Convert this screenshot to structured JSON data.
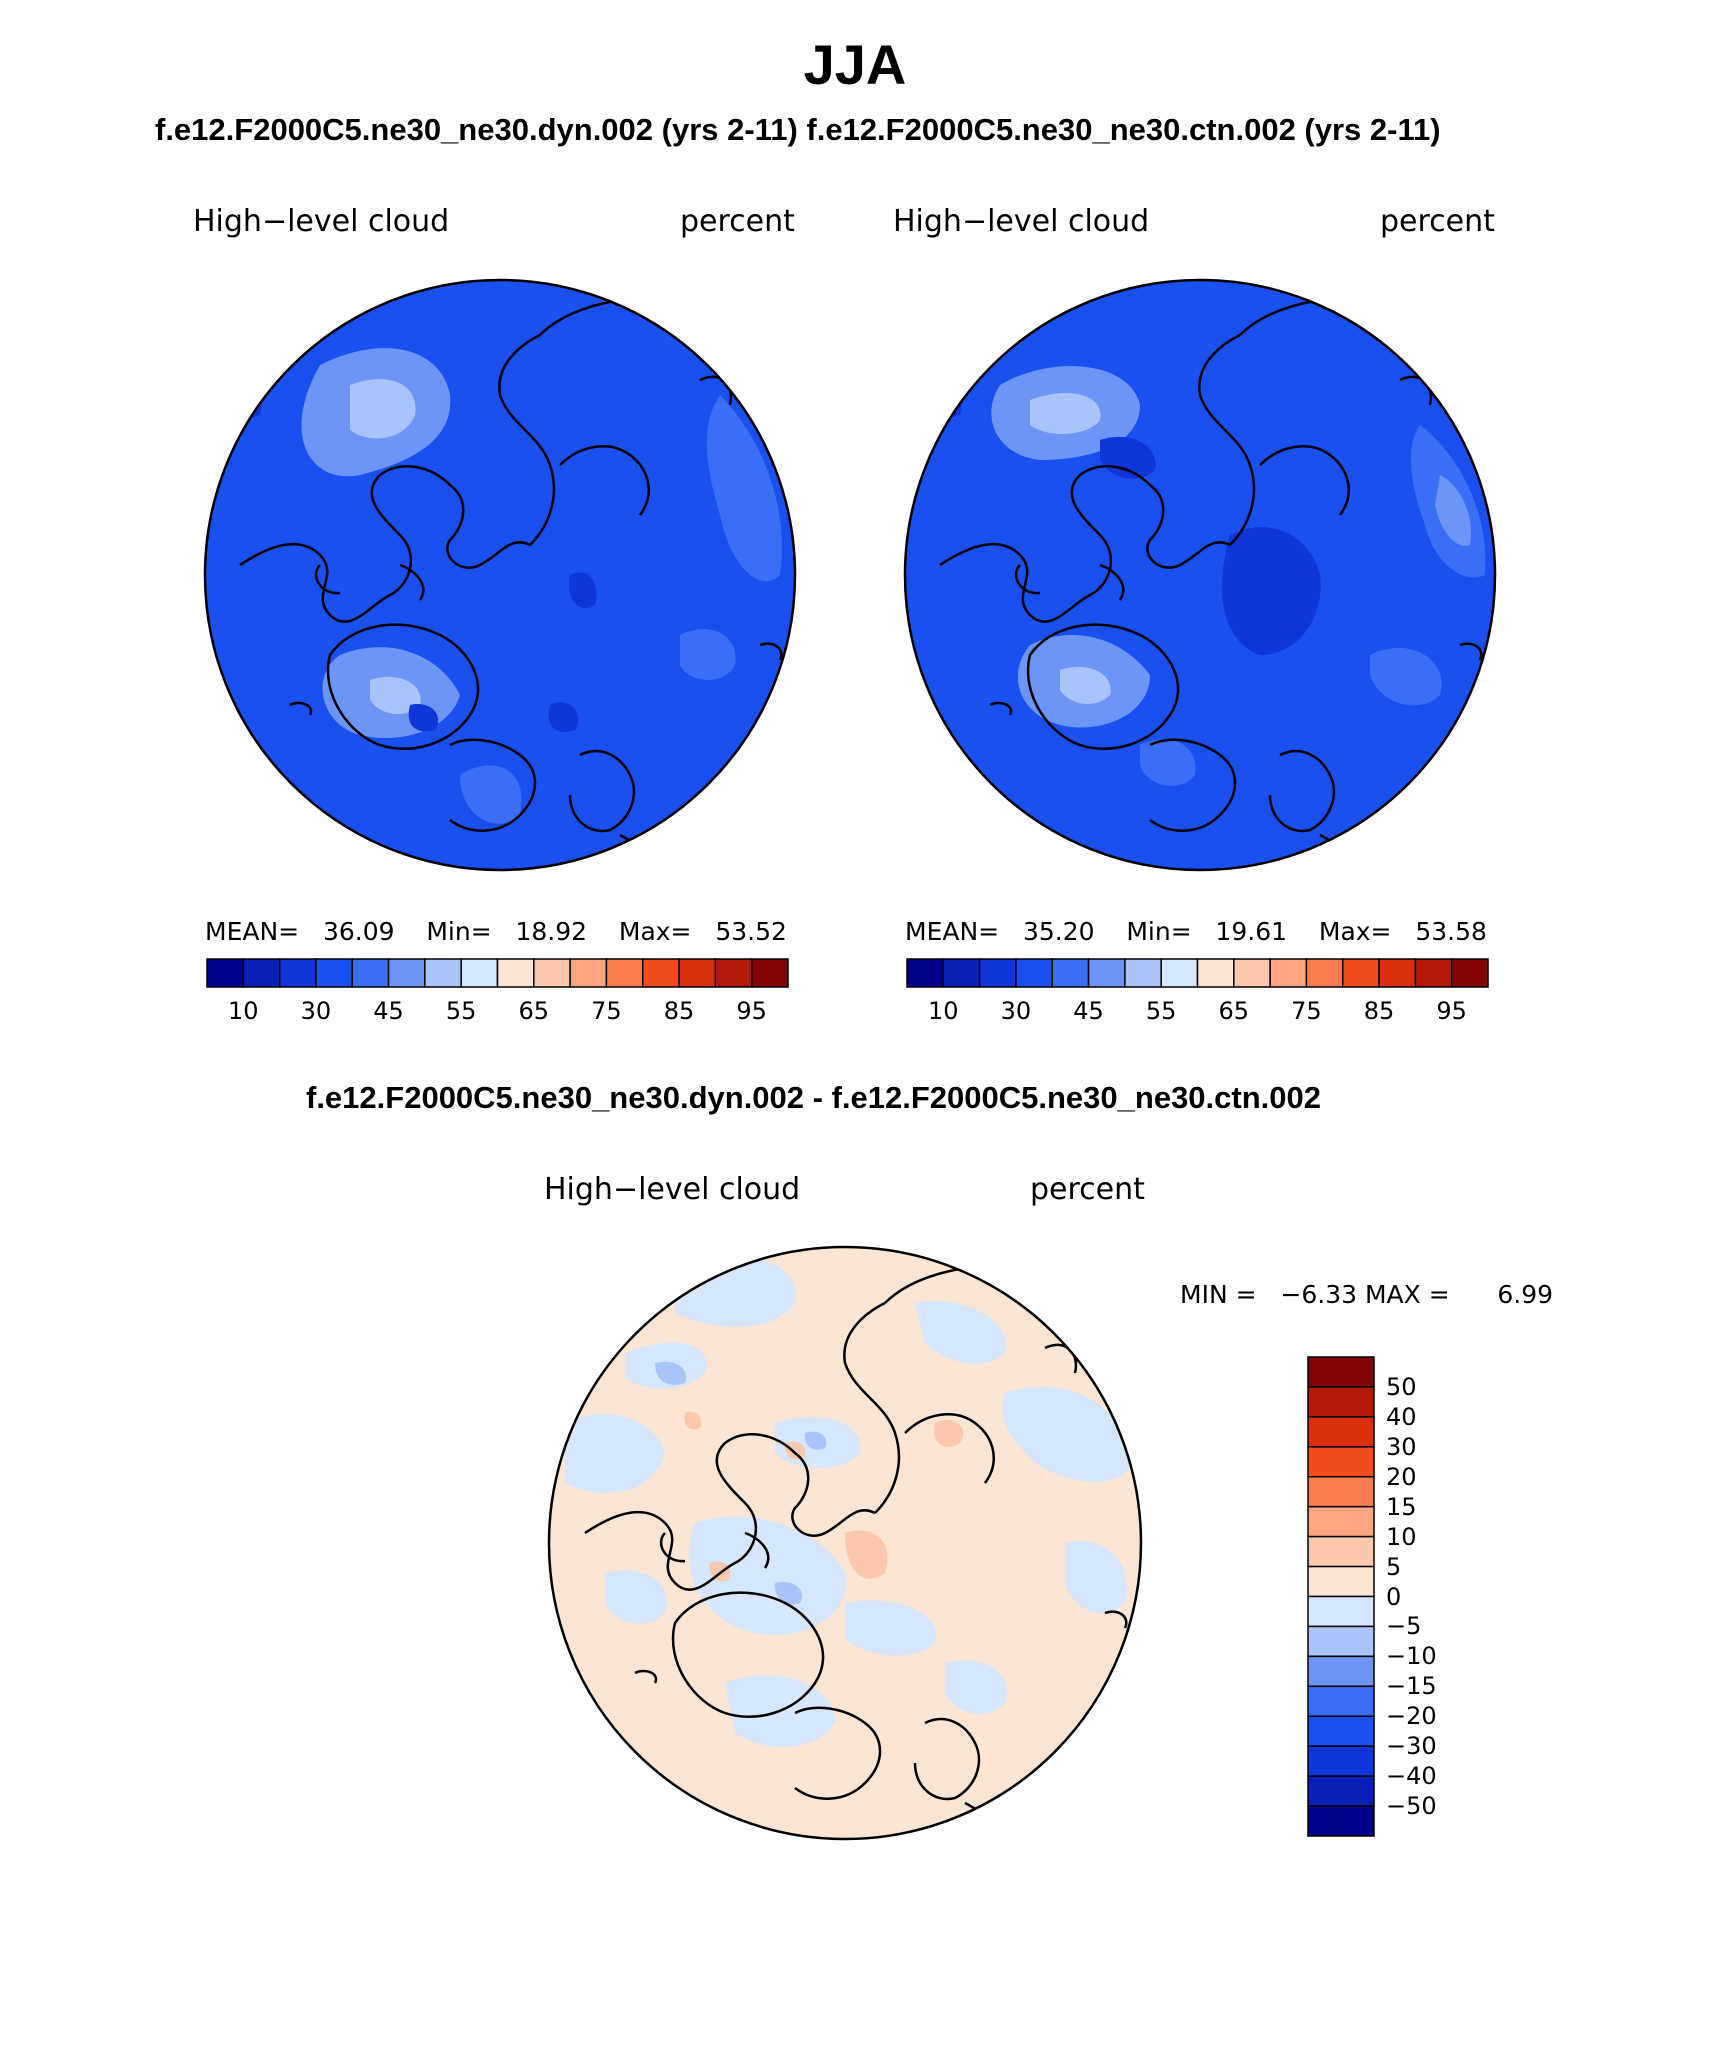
{
  "title": "JJA",
  "top_panel_title": "f.e12.F2000C5.ne30_ne30.dyn.002 (yrs 2-11)  f.e12.F2000C5.ne30_ne30.ctn.002 (yrs 2-11)",
  "diff_panel_title": "f.e12.F2000C5.ne30_ne30.dyn.002 - f.e12.F2000C5.ne30_ne30.ctn.002",
  "variable_label": "High−level cloud",
  "units_label": "percent",
  "panels": [
    {
      "id": "dyn",
      "stats": {
        "mean_label": "MEAN=",
        "mean": "36.09",
        "min_label": "Min=",
        "min": "18.92",
        "max_label": "Max=",
        "max": "53.52"
      }
    },
    {
      "id": "ctn",
      "stats": {
        "mean_label": "MEAN=",
        "mean": "35.20",
        "min_label": "Min=",
        "min": "19.61",
        "max_label": "Max=",
        "max": "53.58"
      }
    }
  ],
  "diff_stats": {
    "min_label": "MIN =",
    "min": "−6.33",
    "max_label": "MAX =",
    "max": "6.99"
  },
  "colorbar_main": {
    "colors": [
      "#00008b",
      "#0a21b8",
      "#1035d8",
      "#1a4ff0",
      "#3a6ef5",
      "#6d95f7",
      "#a8c4fb",
      "#d6e6fd",
      "#fde5d4",
      "#fcc8ad",
      "#fba582",
      "#fa7d4e",
      "#f24d1d",
      "#d9300d",
      "#b31a08",
      "#820404"
    ],
    "tick_labels": [
      "10",
      "30",
      "45",
      "55",
      "65",
      "75",
      "85",
      "95"
    ]
  },
  "colorbar_diff": {
    "colors": [
      "#820404",
      "#b31a08",
      "#d9300d",
      "#f24d1d",
      "#fa7d4e",
      "#fba582",
      "#fcc8ad",
      "#fde5d4",
      "#d6e6fd",
      "#a8c4fb",
      "#6d95f7",
      "#3a6ef5",
      "#1a4ff0",
      "#1035d8",
      "#0a21b8",
      "#00008b"
    ],
    "tick_labels": [
      "50",
      "40",
      "30",
      "20",
      "15",
      "10",
      "5",
      "0",
      "−5",
      "−10",
      "−15",
      "−20",
      "−30",
      "−40",
      "−50"
    ]
  },
  "map_colors": {
    "main_fill": "#1a4ff0",
    "main_light": "#3a6ef5",
    "main_lighter": "#6d95f7",
    "main_lightest": "#a8c4fb",
    "main_dark": "#1035d8",
    "diff_fill": "#fde5d4",
    "diff_blue": "#d6e6fd",
    "diff_blue2": "#a8c4fb",
    "diff_red": "#fcc8ad"
  }
}
